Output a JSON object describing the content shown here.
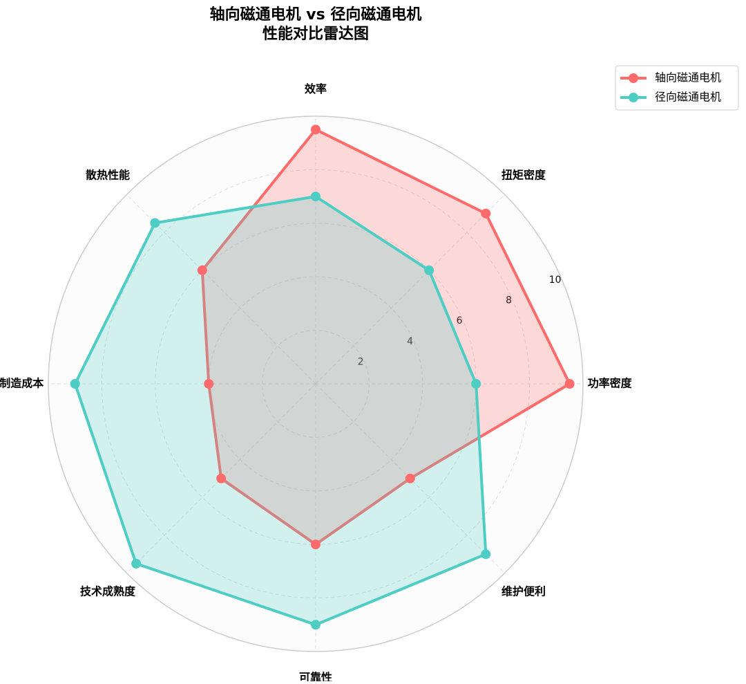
{
  "chart_data": {
    "type": "radar",
    "title": "轴向磁通电机 vs 径向磁通电机",
    "subtitle": "性能对比雷达图",
    "categories": [
      "效率",
      "扭矩密度",
      "功率密度",
      "维护便利",
      "可靠性",
      "技术成熟度",
      "制造成本",
      "散热性能"
    ],
    "series": [
      {
        "name": "轴向磁通电机",
        "color": "#ff6b6b",
        "values": [
          9.5,
          9,
          9.5,
          5,
          6,
          5,
          4,
          6
        ]
      },
      {
        "name": "径向磁通电机",
        "color": "#4ecdc4",
        "values": [
          7,
          6,
          6,
          9,
          9,
          9.5,
          9,
          8.5
        ]
      }
    ],
    "ylim": [
      0,
      10
    ],
    "yticks": [
      2,
      4,
      6,
      8,
      10
    ],
    "grid": true,
    "legend": "upper right"
  }
}
